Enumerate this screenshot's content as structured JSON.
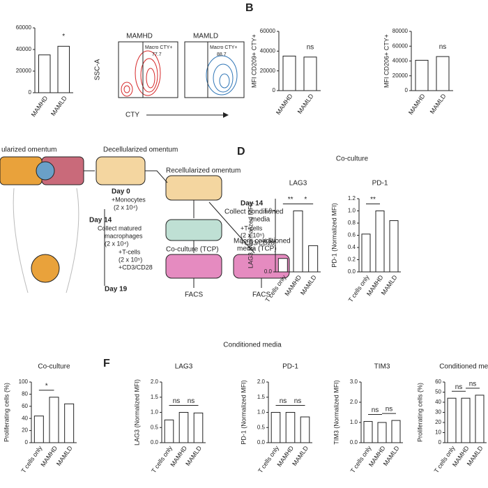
{
  "panels": {
    "b": "B",
    "d": "D",
    "f": "F"
  },
  "flow": {
    "ylabel": "SSC-A",
    "xlabel": "CTY",
    "left_title": "MAMHD",
    "right_title": "MAMLD",
    "gate": "Macro CTY+",
    "left_pct": "77.7",
    "right_pct": "88.7"
  },
  "diagram": {
    "omentum": "ularized omentum",
    "decell": "Decellularized omentum",
    "day0": "Day 0",
    "monocytes": "+Monocytes",
    "mono_n": "(2 x 10⁴)",
    "recell": "Recellularized omentum",
    "day14a": "Day 14",
    "collect_media": "Collect conditioned",
    "media": "media",
    "day14b": "Day 14",
    "collect_mac": "Collect matured",
    "macrophages": "macrophages",
    "mac_n": "(2 x 10⁴)",
    "tcells_a": "+T-cells",
    "tcells_a_n": "(2 x 10⁵)",
    "cd_a": "+CD3/CD28",
    "tcells_b": "+T-cells",
    "tcells_b_n": "(2 x 10⁵)",
    "cd_b": "+CD3/CD28",
    "coculture": "Co-culture (TCP)",
    "macro_cond": "Macro conditioned",
    "macro_cond2": "media (TCP)",
    "day19": "Day 19",
    "facs1": "FACS",
    "facs2": "FACS"
  },
  "headers": {
    "coculture": "Co-culture",
    "conditioned": "Conditioned media"
  },
  "chart_data": [
    {
      "type": "bar",
      "categories": [
        "MAMHD",
        "MAMLD"
      ],
      "values": [
        35000,
        43000
      ],
      "ylim": [
        0,
        60000
      ],
      "yticks": [
        0,
        20000,
        40000,
        60000
      ],
      "annotations": [
        "*"
      ],
      "color": "#ffffff"
    },
    {
      "type": "bar",
      "ylabel": "MFI CD209+ CTY+",
      "categories": [
        "MAMHD",
        "MAMLD"
      ],
      "values": [
        35000,
        34000
      ],
      "ylim": [
        0,
        60000
      ],
      "yticks": [
        0,
        20000,
        40000,
        60000
      ],
      "annotations": [
        "ns"
      ],
      "color": "#ffffff"
    },
    {
      "type": "bar",
      "ylabel": "MFI CD206+ CTY+",
      "categories": [
        "MAMHD",
        "MAMLD"
      ],
      "values": [
        41000,
        46000
      ],
      "ylim": [
        0,
        80000
      ],
      "yticks": [
        0,
        20000,
        40000,
        60000,
        80000
      ],
      "annotations": [
        "ns"
      ],
      "color": "#ffffff"
    },
    {
      "type": "bar",
      "title": "LAG3",
      "ylabel": "LAG3 (Normalized MFI)",
      "categories": [
        "T cells only",
        "MAMHD",
        "MAMLD"
      ],
      "values": [
        0.22,
        1.0,
        0.43
      ],
      "ylim": [
        0,
        1.2
      ],
      "yticks": [
        {
          "value": 0,
          "label": "0.0"
        },
        0.5,
        {
          "value": 1,
          "label": "1.0"
        }
      ],
      "annotations": [
        "**",
        "*"
      ],
      "color": "#ffffff"
    },
    {
      "type": "bar",
      "title": "PD-1",
      "ylabel": "PD-1 (Normalized MFI)",
      "categories": [
        "T cells only",
        "MAMHD",
        "MAMLD"
      ],
      "values": [
        0.62,
        1.0,
        0.84
      ],
      "ylim": [
        0,
        1.2
      ],
      "yticks": [
        {
          "value": 0,
          "label": "0.0"
        },
        0.2,
        0.4,
        0.6,
        0.8,
        {
          "value": 1,
          "label": "1.0"
        },
        1.2
      ],
      "annotations": [
        "**"
      ],
      "color": "#ffffff"
    },
    {
      "type": "bar",
      "title": "Co-culture",
      "ylabel": "Proliferating cells (%)",
      "categories": [
        "T cells only",
        "MAMHD",
        "MAMLD"
      ],
      "values": [
        44,
        75,
        64
      ],
      "ylim": [
        0,
        100
      ],
      "yticks": [
        0,
        20,
        40,
        60,
        80,
        100
      ],
      "annotations": [
        "*"
      ],
      "color": "#ffffff"
    },
    {
      "type": "bar",
      "title": "LAG3",
      "ylabel": "LAG3 (Normalized MFI)",
      "categories": [
        "T cells only",
        "MAMHD",
        "MAMLD"
      ],
      "values": [
        0.75,
        1.0,
        0.98
      ],
      "ylim": [
        0,
        2
      ],
      "yticks": [
        {
          "value": 0,
          "label": "0.0"
        },
        0.5,
        {
          "value": 1,
          "label": "1.0"
        },
        1.5,
        {
          "value": 2,
          "label": "2.0"
        }
      ],
      "annotations": [
        "ns",
        "ns"
      ],
      "color": "#ffffff"
    },
    {
      "type": "bar",
      "title": "PD-1",
      "ylabel": "PD-1 (Normalized MFI)",
      "categories": [
        "T cells only",
        "MAMHD",
        "MAMLD"
      ],
      "values": [
        1.0,
        1.0,
        0.85
      ],
      "ylim": [
        0,
        2
      ],
      "yticks": [
        {
          "value": 0,
          "label": "0.0"
        },
        0.5,
        {
          "value": 1,
          "label": "1.0"
        },
        1.5,
        {
          "value": 2,
          "label": "2.0"
        }
      ],
      "annotations": [
        "ns",
        "ns"
      ],
      "color": "#ffffff"
    },
    {
      "type": "bar",
      "title": "TIM3",
      "ylabel": "TIM3 (Normalized MFI)",
      "categories": [
        "T cells only",
        "MAMHD",
        "MAMLD"
      ],
      "values": [
        1.05,
        1.0,
        1.1
      ],
      "ylim": [
        0,
        3
      ],
      "yticks": [
        {
          "value": 0,
          "label": "0.0"
        },
        {
          "value": 1,
          "label": "1.0"
        },
        {
          "value": 2,
          "label": "2.0"
        },
        {
          "value": 3,
          "label": "3.0"
        }
      ],
      "annotations": [
        "ns",
        "ns"
      ],
      "color": "#ffffff"
    },
    {
      "type": "bar",
      "title": "Conditioned med",
      "ylabel": "Proliferating cells (%)",
      "categories": [
        "T cells only",
        "MAMHD",
        "MAMLD"
      ],
      "values": [
        44,
        44,
        47
      ],
      "ylim": [
        0,
        60
      ],
      "yticks": [
        0,
        10,
        20,
        30,
        40,
        50,
        60
      ],
      "annotations": [
        "ns",
        "ns"
      ],
      "color": "#ffffff"
    }
  ]
}
